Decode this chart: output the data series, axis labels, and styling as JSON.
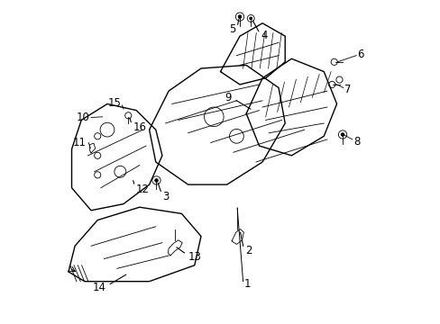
{
  "background_color": "#ffffff",
  "figsize": [
    4.89,
    3.6
  ],
  "dpi": 100,
  "line_color": "#000000",
  "label_fontsize": 8.5
}
